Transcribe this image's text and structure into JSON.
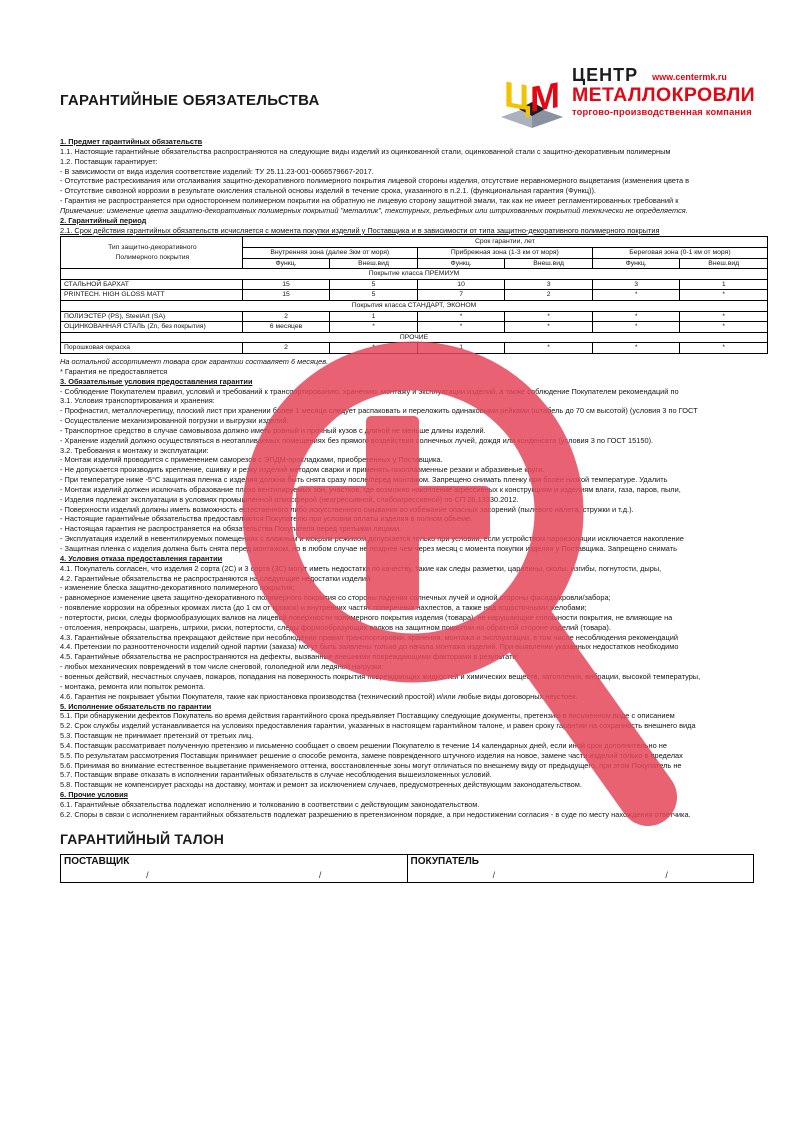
{
  "title": "ГАРАНТИЙНЫЕ ОБЯЗАТЕЛЬСТВА",
  "logo": {
    "monogram": "ЦМ",
    "company_line1": "ЦЕНТР",
    "company_line2": "МЕТАЛЛОКРОВЛИ",
    "tagline": "торгово-производственная компания",
    "url": "www.centermk.ru",
    "brand_red": "#e30613",
    "brand_yellow": "#f2c300",
    "cube_gray": "#a8b0bf"
  },
  "watermark": {
    "icon": "magnifier-plus",
    "color": "#e5475a",
    "opacity": 0.85
  },
  "pre_lines": [
    {
      "style": "h",
      "text": "1. Предмет гарантийных обязательств"
    },
    {
      "style": "p",
      "text": "1.1. Настоящие гарантийные обязательства распространяются на следующие виды изделий из оцинкованной стали, оцинкованной стали с защитно-декоративным полимерным"
    },
    {
      "style": "p",
      "text": "1.2. Поставщик гарантирует:"
    },
    {
      "style": "p",
      "text": "- В зависимости от вида изделия соответствие изделий: ТУ 25.11.23-001-0066579667-2017."
    },
    {
      "style": "p",
      "text": "- Отсутствие растрескивания или отслаивания защитно-декоративного полимерного покрытия лицевой стороны изделия, отсутствие неравномерного выцветания (изменения цвета в"
    },
    {
      "style": "p",
      "text": "- Отсутствие сквозной коррозии в результате окисления стальной основы изделий в течение срока, указанного в п.2.1. (функциональная гарантия (Функц))."
    },
    {
      "style": "p",
      "text": "- Гарантия не распространяется при одностороннем полимерном покрытии на обратную не лицевую сторону защитной эмали, так как не имеет регламентированных требований к"
    },
    {
      "style": "i",
      "text": "Примечание: изменение цвета защитно-декоративных полимерных покрытий \"металлик\", текстурных, рельефных или штрихованных покрытий технически не определяется."
    },
    {
      "style": "h",
      "text": "2. Гарантийный период"
    },
    {
      "style": "pu",
      "text": "2.1. Срок действия гарантийных обязательств исчисляется с момента покупки изделий у Поставщика и в зависимости от типа защитно-декоративного полимерного покрытия"
    }
  ],
  "table": {
    "col1_header_line1": "Тип защитно-декоративного",
    "col1_header_line2": "Полимерного покрытия",
    "span_header": "Срок гарантии, лет",
    "zones": [
      "Внутренняя зона (далее 3км от моря)",
      "Прибрежная зона (1-3 км от моря)",
      "Береговая зона (0-1 км от моря)"
    ],
    "sub_headers": [
      "Функц.",
      "Внеш.вид"
    ],
    "rows": [
      {
        "type": "section",
        "label": "Покрытие класса ПРЕМИУМ"
      },
      {
        "type": "data",
        "label": "СТАЛЬНОЙ БАРХАТ",
        "values": [
          "15",
          "5",
          "10",
          "3",
          "3",
          "1"
        ]
      },
      {
        "type": "data",
        "label": "PRINTECH. HIGH GLOSS MATT",
        "values": [
          "15",
          "5",
          "7",
          "2",
          "*",
          "*"
        ]
      },
      {
        "type": "section",
        "label": "Покрытия класса СТАНДАРТ, ЭКОНОМ"
      },
      {
        "type": "data",
        "label": "ПОЛИЭСТЕР (PS),  SteelArt (SA)",
        "values": [
          "2",
          "1",
          "*",
          "*",
          "*",
          "*"
        ]
      },
      {
        "type": "data",
        "label": "ОЦИНКОВАННАЯ СТАЛЬ (Zn, без покрытия)",
        "values": [
          "6 месяцев",
          "*",
          "*",
          "*",
          "*",
          "*"
        ]
      },
      {
        "type": "section",
        "label": "ПРОЧИЕ"
      },
      {
        "type": "data",
        "label": "Порошковая окраска",
        "values": [
          "2",
          "*",
          "1",
          "*",
          "*",
          "*"
        ]
      }
    ]
  },
  "post_lines": [
    {
      "style": "i",
      "text": "На остальной ассортимент товара срок гарантии составляет 6 месяцев."
    },
    {
      "style": "p",
      "text": "* Гарантия не предоставляется"
    },
    {
      "style": "h",
      "text": "3. Обязательные условия предоставления гарантии"
    },
    {
      "style": "p",
      "text": "- Соблюдение Покупателем правил, условий и требований к транспортированию, хранению, монтажу и эксплуатации изделий, а также соблюдение Покупателем рекомендаций по"
    },
    {
      "style": "p",
      "text": "3.1. Условия транспортирования и хранения:"
    },
    {
      "style": "p",
      "text": "- Профнастил, металлочерепицу, плоский лист при хранении более 1 месяца следует распаковать и переложить одинаковыми рейками (штабель до 70 см высотой) (условия 3 по ГОСТ"
    },
    {
      "style": "p",
      "text": "- Осуществление механизированной погрузки и выгрузки изделий."
    },
    {
      "style": "p",
      "text": "- Транспортное средство в случае самовывоза должно иметь ровный и прочный кузов с длиной не меньше длины изделий."
    },
    {
      "style": "p",
      "text": "- Хранение изделий должно осуществляться в неотапливаемых помещениях без прямого воздействия солнечных лучей, дождя или конденсата (условия 3 по ГОСТ 15150)."
    },
    {
      "style": "p",
      "text": "3.2. Требования к монтажу и эксплуатации:"
    },
    {
      "style": "p",
      "text": "- Монтаж изделий проводится с применением саморезов с ЭПДМ-прокладками, приобретенных у Поставщика."
    },
    {
      "style": "p",
      "text": "- Не допускается производить крепление, сшивку и резку изделий методом сварки и применять газоплазменные резаки и абразивные круги."
    },
    {
      "style": "p",
      "text": "- При температуре ниже -5°С защитная пленка с изделия должна быть снята сразу после/перед монтажом. Запрещено снимать пленку при более низкой температуре. Удалить"
    },
    {
      "style": "p",
      "text": "- Монтаж изделий должен исключать образование плохо вентилируемых зон, участков, где возможно накопление агрессивных к конструкциям и изделиям влаги, газа, паров, пыли,"
    },
    {
      "style": "p",
      "text": "- Изделия подлежат эксплуатации в условиях промышленной атмосферой (неагрессивной, слабоагрессивной) по СП 28.13330.2012."
    },
    {
      "style": "p",
      "text": "- Поверхности изделий должны иметь возможность естественного либо искусственного смывания во избежание опасных засорений (пылевого налета, стружки и т.д.)."
    },
    {
      "style": "p",
      "text": "- Настоящие гарантийные обязательства предоставляются Покупателю при условии оплаты изделия в полном объеме."
    },
    {
      "style": "p",
      "text": "- Настоящая гарантия не распространяется на обязательства Покупателя перед третьими лицами."
    },
    {
      "style": "p",
      "text": "- Эксплуатация изделий в невентилируемых помещениях с влажным и мокрым режимом допускается только при условии, если устройством пароизоляции исключается накопление"
    },
    {
      "style": "p",
      "text": "- Защитная пленка с изделия должна быть снята перед монтажом, но в любом случае не позднее чем через месяц с момента покупки изделия у Поставщика. Запрещено снимать"
    },
    {
      "style": "h",
      "text": "4. Условия отказа предоставления гарантии"
    },
    {
      "style": "p",
      "text": "4.1. Покупатель согласен, что изделия 2 сорта (2С) и 3 сорта (3С) могут иметь недостатки по качеству, такие как следы разметки, царапины, сколы, изгибы, погнутости, дыры,"
    },
    {
      "style": "p",
      "text": "4.2. Гарантийные обязательства не распространяются на следующие недостатки изделий:"
    },
    {
      "style": "p",
      "text": "- изменение блеска защитно-декоративного полимерного покрытия;"
    },
    {
      "style": "p",
      "text": "- равномерное изменение цвета защитно-декоративного полимерного покрытия со стороны падения солнечных лучей и одной стороны фасада/кровли/забора;"
    },
    {
      "style": "p",
      "text": "- появление коррозии на обрезных кромках листа (до 1 см от кромок) и внутренних частях поперечных нахлестов, а также над водосточными желобами;"
    },
    {
      "style": "p",
      "text": "- потертости, риски, следы формообразующих валков на лицевой поверхности полимерного покрытия изделия (товара), не нарушающие сплошности покрытия, не влияющие на"
    },
    {
      "style": "p",
      "text": "- отслоения, непрокрасы, шагрень, штрихи, риски, потертости, следы формообразующих валков на защитном покрытии на обратной стороне изделий (товара)."
    },
    {
      "style": "p",
      "text": "4.3. Гарантийные обязательства прекращают действие при несоблюдении правил транспортировки, хранения, монтажа и эксплуатации, в том числе несоблюдения рекомендаций"
    },
    {
      "style": "p",
      "text": "4.4. Претензии по разнооттеночности изделий одной партии (заказа) могут быть заявлены только до начала монтажа изделий. При выявлении указанных недостатков необходимо"
    },
    {
      "style": "p",
      "text": "4.5. Гарантийные обязательства не распространяются на дефекты, вызванные внешними повреждающими факторами в результате:"
    },
    {
      "style": "p",
      "text": "- любых механических повреждений в том числе снеговой, гололедной или ледяной нагрузки;"
    },
    {
      "style": "p",
      "text": "- военных действий, несчастных случаев, пожаров, попадания на поверхность покрытия повреждающих жидкостей и химических веществ, затопления, вибрации, высокой температуры,"
    },
    {
      "style": "p",
      "text": "- монтажа, ремонта или попыток ремонта."
    },
    {
      "style": "p",
      "text": "4.6. Гарантия не покрывает убытки Покупателя, такие как приостановка производства (технический простой) и/или любые виды договорных неустоек."
    },
    {
      "style": "h",
      "text": "5. Исполнение обязательств по гарантии"
    },
    {
      "style": "p",
      "text": "5.1. При обнаружении дефектов Покупатель во время действия гарантийного срока предъявляет Поставщику следующие документы, претензию в письменном виде с описанием"
    },
    {
      "style": "p",
      "text": "5.2. Срок службы изделий устанавливается на условиях предоставления гарантии, указанных в настоящем гарантийном талоне, и равен сроку гарантии на сохранность внешнего вида"
    },
    {
      "style": "p",
      "text": "5.3. Поставщик не принимает претензий от третьих лиц."
    },
    {
      "style": "p",
      "text": "5.4. Поставщик рассматривает полученную претензию и письменно сообщает о своем решении Покупателю в течение 14 календарных дней, если иной срок дополнительно не"
    },
    {
      "style": "p",
      "text": "5.5. По результатам рассмотрения Поставщик принимает решение о способе ремонта, замене поврежденного штучного изделия на новое, замене части изделий только в пределах"
    },
    {
      "style": "p",
      "text": "5.6. Принимая во внимание естественное выцветание применяемого оттенка, восстановленные зоны могут отличаться по внешнему виду от предыдущего, при этом Покупатель не"
    },
    {
      "style": "p",
      "text": "5.7. Поставщик вправе отказать в исполнении гарантийных обязательств в случае несоблюдения вышеизложенных условий."
    },
    {
      "style": "p",
      "text": "5.8. Поставщик не компенсирует расходы на доставку, монтаж и ремонт за исключением случаев, предусмотренных действующим законодательством."
    },
    {
      "style": "h",
      "text": "6. Прочие условия"
    },
    {
      "style": "p",
      "text": "6.1. Гарантийные обязательства подлежат исполнению и толкованию в соответствии с действующим законодательством."
    },
    {
      "style": "p",
      "text": "6.2. Споры в связи с исполнением гарантийных обязательств подлежат разрешению в претензионном порядке, а при недостижении согласия - в суде по месту нахождения ответчика."
    }
  ],
  "coupon": {
    "title": "ГАРАНТИЙНЫЙ ТАЛОН",
    "supplier_label": "ПОСТАВЩИК",
    "buyer_label": "ПОКУПАТЕЛЬ",
    "slash": "/"
  }
}
